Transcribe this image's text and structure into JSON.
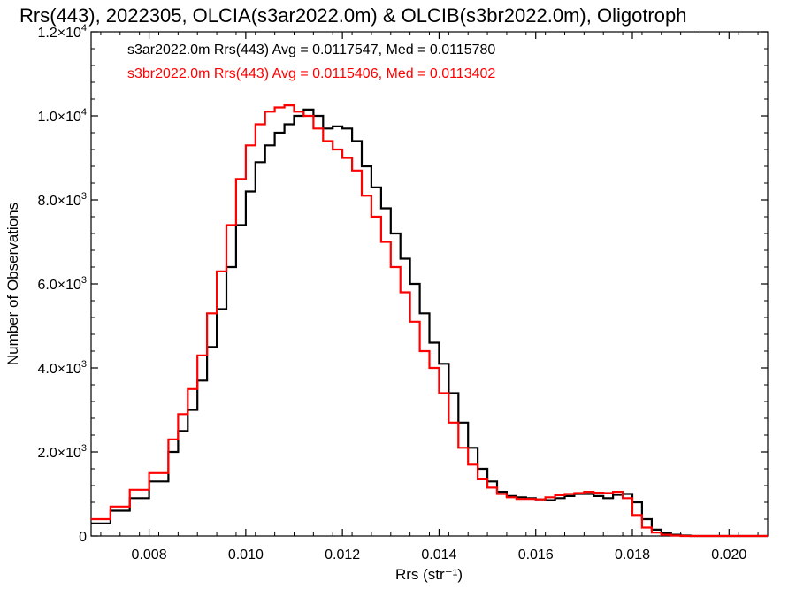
{
  "chart_data": {
    "type": "line",
    "title": "Rrs(443), 2022305, OLCIA(s3ar2022.0m) & OLCIB(s3br2022.0m), Oligotroph",
    "xlabel": "Rrs (str⁻¹)",
    "ylabel": "Number of Observations",
    "xlim": [
      0.0068,
      0.0208
    ],
    "ylim": [
      0,
      12000
    ],
    "grid": false,
    "legend_position": "top-left",
    "x_ticks": [
      0.008,
      0.01,
      0.012,
      0.014,
      0.016,
      0.018,
      0.02
    ],
    "x_tick_labels": [
      "0.008",
      "0.010",
      "0.012",
      "0.014",
      "0.016",
      "0.018",
      "0.020"
    ],
    "y_ticks": [
      0,
      2000,
      4000,
      6000,
      8000,
      10000,
      12000
    ],
    "y_tick_labels": [
      {
        "base": "0",
        "exp": ""
      },
      {
        "base": "2.0×10",
        "exp": "3"
      },
      {
        "base": "4.0×10",
        "exp": "3"
      },
      {
        "base": "6.0×10",
        "exp": "3"
      },
      {
        "base": "8.0×10",
        "exp": "3"
      },
      {
        "base": "1.0×10",
        "exp": "4"
      },
      {
        "base": "1.2×10",
        "exp": "4"
      }
    ],
    "series": [
      {
        "name": "s3ar2022.0m Rrs(443) Avg = 0.0117547, Med = 0.0115780",
        "color": "#000000",
        "x": [
          0.0068,
          0.0072,
          0.0076,
          0.008,
          0.0084,
          0.0086,
          0.0088,
          0.009,
          0.0092,
          0.0094,
          0.0096,
          0.0098,
          0.01,
          0.0102,
          0.0104,
          0.0106,
          0.0108,
          0.011,
          0.0112,
          0.0114,
          0.0116,
          0.0118,
          0.012,
          0.0122,
          0.0124,
          0.0126,
          0.0128,
          0.013,
          0.0132,
          0.0134,
          0.0136,
          0.0138,
          0.014,
          0.0142,
          0.0144,
          0.0146,
          0.0148,
          0.015,
          0.0152,
          0.0154,
          0.0156,
          0.0158,
          0.016,
          0.0162,
          0.0164,
          0.0166,
          0.0168,
          0.017,
          0.0172,
          0.0174,
          0.0176,
          0.0178,
          0.018,
          0.0182,
          0.0184,
          0.0186,
          0.0188,
          0.019,
          0.0192,
          0.0196,
          0.02,
          0.0208
        ],
        "y": [
          300,
          600,
          900,
          1300,
          2000,
          2500,
          3000,
          3700,
          4500,
          5400,
          6400,
          7400,
          8200,
          8900,
          9300,
          9600,
          9800,
          10000,
          10150,
          10000,
          9700,
          9750,
          9700,
          9400,
          8800,
          8300,
          7800,
          7200,
          6600,
          6000,
          5300,
          4600,
          4100,
          3400,
          2700,
          2100,
          1600,
          1300,
          1050,
          950,
          920,
          900,
          870,
          850,
          900,
          950,
          1000,
          1000,
          950,
          900,
          980,
          1000,
          800,
          400,
          150,
          60,
          30,
          10,
          0,
          0,
          0,
          0
        ]
      },
      {
        "name": "s3br2022.0m Rrs(443) Avg = 0.0115406, Med = 0.0113402",
        "color": "#ff0000",
        "x": [
          0.0068,
          0.0072,
          0.0076,
          0.008,
          0.0084,
          0.0086,
          0.0088,
          0.009,
          0.0092,
          0.0094,
          0.0096,
          0.0098,
          0.01,
          0.0102,
          0.0104,
          0.0106,
          0.0108,
          0.011,
          0.0112,
          0.0114,
          0.0116,
          0.0118,
          0.012,
          0.0122,
          0.0124,
          0.0126,
          0.0128,
          0.013,
          0.0132,
          0.0134,
          0.0136,
          0.0138,
          0.014,
          0.0142,
          0.0144,
          0.0146,
          0.0148,
          0.015,
          0.0152,
          0.0154,
          0.0156,
          0.0158,
          0.016,
          0.0162,
          0.0164,
          0.0166,
          0.0168,
          0.017,
          0.0172,
          0.0174,
          0.0176,
          0.0178,
          0.018,
          0.0182,
          0.0184,
          0.0186,
          0.0188,
          0.019,
          0.0192,
          0.0196,
          0.02,
          0.0208
        ],
        "y": [
          400,
          700,
          1100,
          1500,
          2300,
          2900,
          3500,
          4300,
          5300,
          6300,
          7400,
          8500,
          9300,
          9800,
          10100,
          10200,
          10250,
          10100,
          10000,
          9700,
          9400,
          9200,
          9000,
          8700,
          8100,
          7600,
          7000,
          6400,
          5800,
          5100,
          4400,
          4000,
          3400,
          2700,
          2100,
          1700,
          1350,
          1150,
          1000,
          920,
          880,
          880,
          870,
          920,
          970,
          1000,
          1020,
          1050,
          1030,
          1020,
          1050,
          900,
          500,
          200,
          80,
          30,
          10,
          0,
          0,
          0,
          0,
          0
        ]
      }
    ]
  }
}
